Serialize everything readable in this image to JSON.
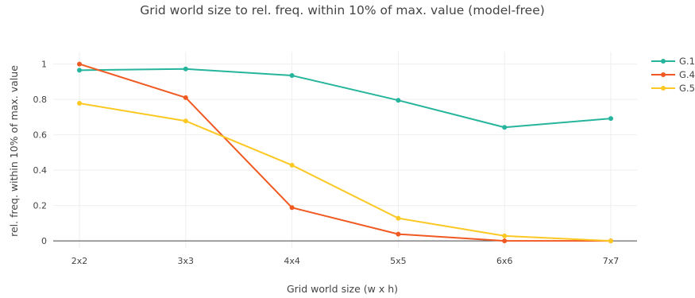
{
  "chart_data": {
    "type": "line",
    "title": "Grid world size to rel. freq. within 10% of max. value (model-free)",
    "xlabel": "Grid world size (w x h)",
    "ylabel": "rel. freq. within 10% of max. value",
    "categories": [
      "2x2",
      "3x3",
      "4x4",
      "5x5",
      "6x6",
      "7x7"
    ],
    "ylim": [
      -0.04,
      1.07
    ],
    "yticks": [
      0,
      0.2,
      0.4,
      0.6,
      0.8,
      1
    ],
    "ytick_labels": [
      "0",
      "0.2",
      "0.4",
      "0.6",
      "0.8",
      "1"
    ],
    "grid": true,
    "legend_position": "top-right",
    "series": [
      {
        "name": "G.1",
        "color": "#26b59c",
        "values": [
          0.965,
          0.972,
          0.935,
          0.795,
          0.642,
          0.692
        ]
      },
      {
        "name": "G.4",
        "color": "#f05a22",
        "values": [
          1.0,
          0.81,
          0.188,
          0.038,
          0.0,
          0.0
        ]
      },
      {
        "name": "G.5",
        "color": "#fcc823",
        "values": [
          0.778,
          0.678,
          0.428,
          0.128,
          0.028,
          0.0
        ]
      }
    ]
  }
}
